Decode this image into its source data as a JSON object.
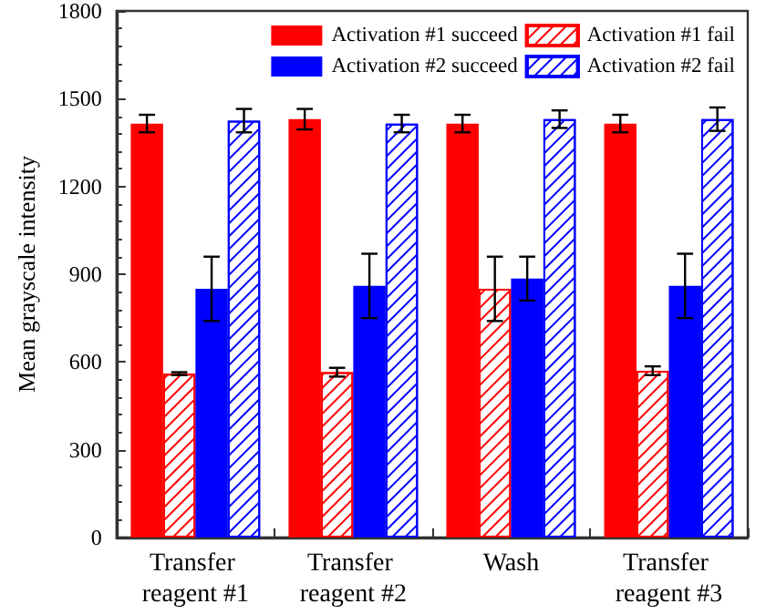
{
  "chart_data": {
    "type": "bar",
    "ylabel": "Mean grayscale intensity",
    "categories": [
      "Transfer reagent #1",
      "Transfer reagent #2",
      "Wash",
      "Transfer reagent #3"
    ],
    "series": [
      {
        "name": "Activation #1 succeed",
        "color": "#ff0000",
        "values": [
          1415,
          1430,
          1415,
          1415
        ],
        "errors": [
          30,
          35,
          30,
          30
        ]
      },
      {
        "name": "Activation #1 fail",
        "color": "#ff0000",
        "values": [
          560,
          565,
          850,
          570
        ],
        "errors": [
          5,
          15,
          110,
          15
        ]
      },
      {
        "name": "Activation #2 succeed",
        "color": "#0000ff",
        "values": [
          850,
          860,
          885,
          860
        ],
        "errors": [
          110,
          110,
          75,
          110
        ]
      },
      {
        "name": "Activation #2 fail",
        "color": "#0000ff",
        "values": [
          1425,
          1415,
          1430,
          1430
        ],
        "errors": [
          40,
          30,
          30,
          40
        ]
      }
    ],
    "ylim": [
      0,
      1800
    ],
    "yticks": [
      0,
      300,
      600,
      900,
      1200,
      1500,
      1800
    ],
    "legend": "top right",
    "grid": false
  }
}
